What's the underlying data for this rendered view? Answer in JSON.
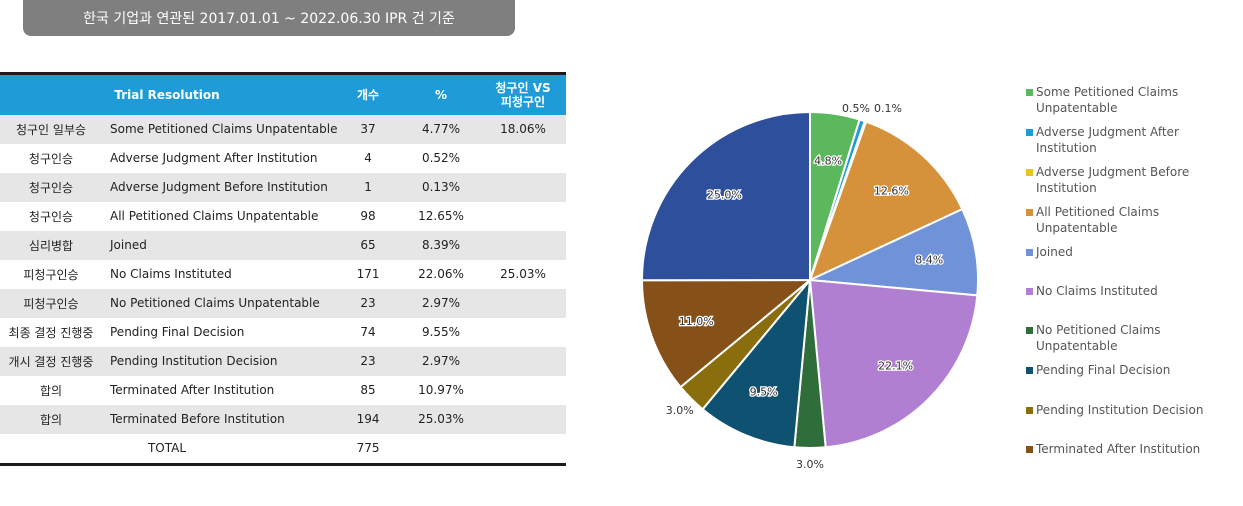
{
  "title": "한국 기업과 연관된 2017.01.01 ~ 2022.06.30 IPR 건 기준",
  "table": {
    "headers": [
      "Trial Resolution",
      "개수",
      "%",
      "청구인 VS\n피청구인"
    ],
    "rows": [
      {
        "party": "청구인 일부승",
        "resolution": "Some Petitioned Claims Unpatentable",
        "count": "37",
        "pct": "4.77%",
        "vs": "18.06%"
      },
      {
        "party": "청구인승",
        "resolution": "Adverse Judgment After Institution",
        "count": "4",
        "pct": "0.52%",
        "vs": ""
      },
      {
        "party": "청구인승",
        "resolution": "Adverse Judgment Before Institution",
        "count": "1",
        "pct": "0.13%",
        "vs": ""
      },
      {
        "party": "청구인승",
        "resolution": "All Petitioned Claims Unpatentable",
        "count": "98",
        "pct": "12.65%",
        "vs": ""
      },
      {
        "party": "심리병합",
        "resolution": "Joined",
        "count": "65",
        "pct": "8.39%",
        "vs": ""
      },
      {
        "party": "피청구인승",
        "resolution": "No Claims Instituted",
        "count": "171",
        "pct": "22.06%",
        "vs": "25.03%"
      },
      {
        "party": "피청구인승",
        "resolution": "No Petitioned Claims Unpatentable",
        "count": "23",
        "pct": "2.97%",
        "vs": ""
      },
      {
        "party": "최종 결정 진행중",
        "resolution": "Pending Final Decision",
        "count": "74",
        "pct": "9.55%",
        "vs": ""
      },
      {
        "party": "개시 결정 진행중",
        "resolution": "Pending Institution Decision",
        "count": "23",
        "pct": "2.97%",
        "vs": ""
      },
      {
        "party": "합의",
        "resolution": "Terminated After Institution",
        "count": "85",
        "pct": "10.97%",
        "vs": ""
      },
      {
        "party": "합의",
        "resolution": "Terminated Before Institution",
        "count": "194",
        "pct": "25.03%",
        "vs": ""
      }
    ],
    "total": {
      "label": "TOTAL",
      "count": "775"
    }
  },
  "chart_data": {
    "type": "pie",
    "slices": [
      {
        "label": "Some Petitioned Claims Unpatentable",
        "value": 4.77,
        "display": "4.8%",
        "color": "#5cb85c"
      },
      {
        "label": "Adverse Judgment After Institution",
        "value": 0.52,
        "display": "0.5%",
        "color": "#1f9bd7"
      },
      {
        "label": "Adverse Judgment Before Institution",
        "value": 0.13,
        "display": "0.1%",
        "color": "#e6c619"
      },
      {
        "label": "All Petitioned Claims Unpatentable",
        "value": 12.65,
        "display": "12.6%",
        "color": "#d6923a"
      },
      {
        "label": "Joined",
        "value": 8.39,
        "display": "8.4%",
        "color": "#7092d9"
      },
      {
        "label": "No Claims Instituted",
        "value": 22.06,
        "display": "22.1%",
        "color": "#b07fd1"
      },
      {
        "label": "No Petitioned Claims Unpatentable",
        "value": 2.97,
        "display": "3.0%",
        "color": "#2f6d3a"
      },
      {
        "label": "Pending Final Decision",
        "value": 9.55,
        "display": "9.5%",
        "color": "#0f5170"
      },
      {
        "label": "Pending Institution Decision",
        "value": 2.97,
        "display": "3.0%",
        "color": "#8a6d0d"
      },
      {
        "label": "Terminated After Institution",
        "value": 10.97,
        "display": "11.0%",
        "color": "#865119"
      },
      {
        "label": "Terminated Before Institution",
        "value": 25.03,
        "display": "25.0%",
        "color": "#2e4f9b"
      }
    ],
    "legend_entries": [
      "Some Petitioned Claims Unpatentable",
      "Adverse Judgment After Institution",
      "Adverse Judgment Before Institution",
      "All Petitioned Claims Unpatentable",
      "Joined",
      "No Claims Instituted",
      "No Petitioned Claims Unpatentable",
      "Pending Final Decision",
      "Pending Institution Decision",
      "Terminated After Institution"
    ],
    "legend_placement": "right"
  }
}
